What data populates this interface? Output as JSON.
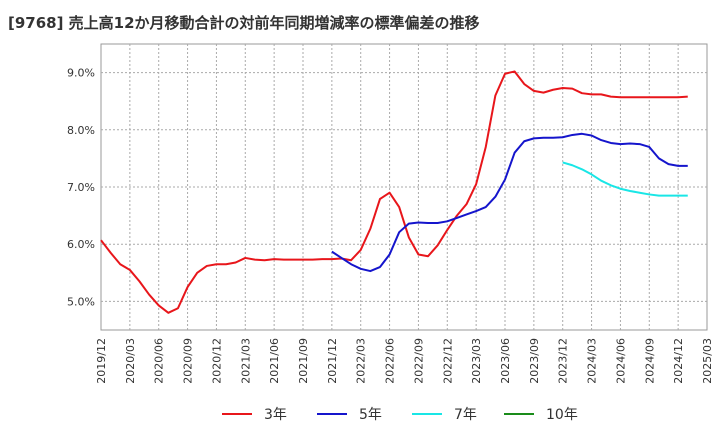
{
  "chart_data": {
    "type": "line",
    "title": "[9768]  売上高12か月移動合計の対前年同期増減率の標準偏差の推移",
    "xlabel": "",
    "ylabel": "",
    "ylim": [
      4.5,
      9.5
    ],
    "y_ticks": [
      "5.0%",
      "6.0%",
      "7.0%",
      "8.0%",
      "9.0%"
    ],
    "y_tick_values": [
      5.0,
      6.0,
      7.0,
      8.0,
      9.0
    ],
    "x_ticks": [
      "2019/12",
      "2020/03",
      "2020/06",
      "2020/09",
      "2020/12",
      "2021/03",
      "2021/06",
      "2021/09",
      "2021/12",
      "2022/03",
      "2022/06",
      "2022/09",
      "2022/12",
      "2023/03",
      "2023/06",
      "2023/09",
      "2023/12",
      "2024/03",
      "2024/06",
      "2024/09",
      "2024/12",
      "2025/03"
    ],
    "x_range_months": [
      0,
      63
    ],
    "grid": true,
    "legend_position": "bottom",
    "series": [
      {
        "name": "3年",
        "color": "#e8161b",
        "start_month": 0,
        "values": [
          6.07,
          5.85,
          5.65,
          5.55,
          5.35,
          5.12,
          4.93,
          4.8,
          4.88,
          5.25,
          5.5,
          5.62,
          5.65,
          5.65,
          5.68,
          5.76,
          5.73,
          5.72,
          5.74,
          5.73,
          5.73,
          5.73,
          5.73,
          5.74,
          5.74,
          5.75,
          5.72,
          5.9,
          6.27,
          6.79,
          6.9,
          6.65,
          6.12,
          5.82,
          5.79,
          5.98,
          6.25,
          6.5,
          6.7,
          7.05,
          7.7,
          8.6,
          8.98,
          9.02,
          8.8,
          8.68,
          8.65,
          8.7,
          8.73,
          8.72,
          8.64,
          8.62,
          8.62,
          8.58,
          8.57,
          8.57,
          8.57,
          8.57,
          8.57,
          8.57,
          8.57,
          8.58
        ]
      },
      {
        "name": "5年",
        "color": "#1515cc",
        "start_month": 24,
        "values": [
          5.87,
          5.76,
          5.65,
          5.57,
          5.53,
          5.6,
          5.82,
          6.21,
          6.36,
          6.38,
          6.37,
          6.37,
          6.4,
          6.46,
          6.52,
          6.58,
          6.65,
          6.83,
          7.13,
          7.6,
          7.8,
          7.85,
          7.86,
          7.86,
          7.87,
          7.91,
          7.93,
          7.9,
          7.82,
          7.77,
          7.75,
          7.76,
          7.75,
          7.7,
          7.5,
          7.4,
          7.37,
          7.37
        ]
      },
      {
        "name": "7年",
        "color": "#19e6e6",
        "start_month": 48,
        "values": [
          7.43,
          7.38,
          7.31,
          7.22,
          7.11,
          7.03,
          6.97,
          6.93,
          6.9,
          6.87,
          6.85,
          6.85,
          6.85,
          6.85
        ]
      },
      {
        "name": "10年",
        "color": "#1a8c1a",
        "start_month": 0,
        "values": []
      }
    ]
  }
}
